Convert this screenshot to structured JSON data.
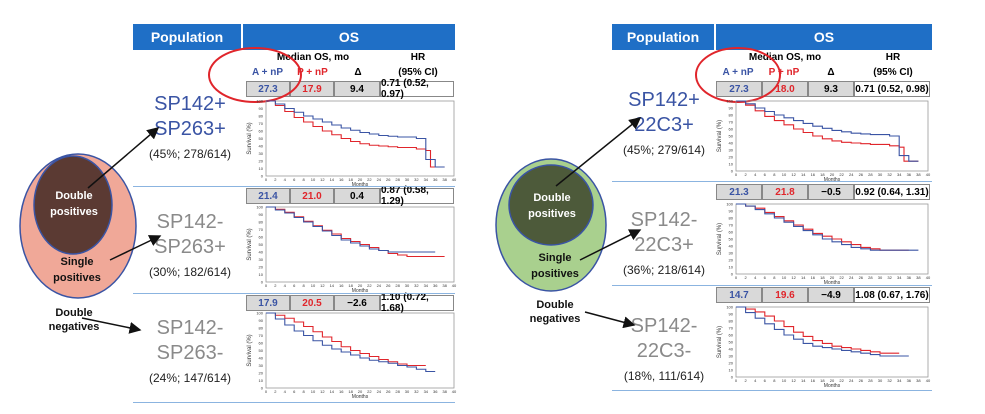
{
  "panels": [
    {
      "header": {
        "population": "Population",
        "os": "OS"
      },
      "col_headers": {
        "median": "Median OS, mo",
        "arm_a": "A + nP",
        "arm_p": "P + nP",
        "delta": "Δ",
        "hr": "HR",
        "hr_sub": "(95% CI)"
      },
      "venn": {
        "double": "Double positives",
        "single": "Single positives",
        "neg": "Double negatives"
      },
      "rows": [
        {
          "name1": "SP142+",
          "name2": "SP263+",
          "sub": "(45%; 278/614)",
          "color": "#3a54a4",
          "a": "27.3",
          "p": "17.9",
          "delta": "9.4",
          "hr": "0.71 (0.52, 0.97)"
        },
        {
          "name1": "SP142-",
          "name2": "SP263+",
          "sub": "(30%; 182/614)",
          "color": "#8a8a8a",
          "a": "21.4",
          "p": "21.0",
          "delta": "0.4",
          "hr": "0.87 (0.58, 1.29)"
        },
        {
          "name1": "SP142-",
          "name2": "SP263-",
          "sub": "(24%; 147/614)",
          "color": "#8a8a8a",
          "a": "17.9",
          "p": "20.5",
          "delta": "−2.6",
          "hr": "1.10 (0.72, 1.68)"
        }
      ]
    },
    {
      "header": {
        "population": "Population",
        "os": "OS"
      },
      "col_headers": {
        "median": "Median OS, mo",
        "arm_a": "A + nP",
        "arm_p": "P + nP",
        "delta": "Δ",
        "hr": "HR",
        "hr_sub": "(95% CI)"
      },
      "venn": {
        "double": "Double positives",
        "single": "Single positives",
        "neg": "Double negatives"
      },
      "rows": [
        {
          "name1": "SP142+",
          "name2": "22C3+",
          "sub": "(45%; 279/614)",
          "color": "#3a54a4",
          "a": "27.3",
          "p": "18.0",
          "delta": "9.3",
          "hr": "0.71 (0.52, 0.98)"
        },
        {
          "name1": "SP142-",
          "name2": "22C3+",
          "sub": "(36%; 218/614)",
          "color": "#8a8a8a",
          "a": "21.3",
          "p": "21.8",
          "delta": "−0.5",
          "hr": "0.92 (0.64, 1.31)"
        },
        {
          "name1": "SP142-",
          "name2": "22C3-",
          "sub": "(18%, 111/614)",
          "color": "#8a8a8a",
          "a": "14.7",
          "p": "19.6",
          "delta": "−4.9",
          "hr": "1.08 (0.67, 1.76)"
        }
      ]
    }
  ],
  "chart_data": {
    "type": "line",
    "xlabel": "Months",
    "ylabel": "Survival (%)",
    "xlim": [
      0,
      40
    ],
    "ylim": [
      0,
      100
    ],
    "xticks": [
      "0",
      "2",
      "4",
      "6",
      "8",
      "10",
      "12",
      "14",
      "16",
      "18",
      "20",
      "22",
      "24",
      "26",
      "28",
      "30",
      "32",
      "34",
      "36",
      "38",
      "40"
    ],
    "yticks": [
      "100",
      "90",
      "80",
      "70",
      "60",
      "50",
      "40",
      "30",
      "20",
      "10",
      "0"
    ],
    "colors": {
      "a_np": "#3a54a4",
      "p_np": "#e0252b"
    },
    "plots": [
      {
        "a_np": [
          [
            0,
            100
          ],
          [
            2,
            96
          ],
          [
            4,
            90
          ],
          [
            6,
            85
          ],
          [
            8,
            80
          ],
          [
            10,
            76
          ],
          [
            12,
            72
          ],
          [
            14,
            68
          ],
          [
            16,
            64
          ],
          [
            18,
            61
          ],
          [
            20,
            58
          ],
          [
            22,
            56
          ],
          [
            24,
            54
          ],
          [
            26,
            53
          ],
          [
            28,
            52
          ],
          [
            30,
            52
          ],
          [
            32,
            50
          ],
          [
            34,
            22
          ],
          [
            36,
            12
          ],
          [
            38,
            12
          ]
        ],
        "p_np": [
          [
            0,
            100
          ],
          [
            2,
            94
          ],
          [
            4,
            86
          ],
          [
            6,
            78
          ],
          [
            8,
            72
          ],
          [
            10,
            66
          ],
          [
            12,
            60
          ],
          [
            14,
            55
          ],
          [
            16,
            50
          ],
          [
            18,
            46
          ],
          [
            20,
            43
          ],
          [
            22,
            41
          ],
          [
            24,
            40
          ],
          [
            26,
            39
          ],
          [
            28,
            38
          ],
          [
            30,
            38
          ],
          [
            32,
            36
          ],
          [
            34,
            34
          ],
          [
            35,
            12
          ],
          [
            38,
            12
          ]
        ]
      },
      {
        "a_np": [
          [
            0,
            100
          ],
          [
            2,
            96
          ],
          [
            4,
            92
          ],
          [
            6,
            86
          ],
          [
            8,
            80
          ],
          [
            10,
            74
          ],
          [
            12,
            68
          ],
          [
            14,
            62
          ],
          [
            16,
            56
          ],
          [
            18,
            52
          ],
          [
            20,
            48
          ],
          [
            22,
            44
          ],
          [
            24,
            42
          ],
          [
            26,
            40
          ],
          [
            28,
            40
          ],
          [
            30,
            40
          ],
          [
            32,
            40
          ],
          [
            34,
            40
          ],
          [
            36,
            40
          ]
        ],
        "p_np": [
          [
            0,
            100
          ],
          [
            2,
            97
          ],
          [
            4,
            93
          ],
          [
            6,
            87
          ],
          [
            8,
            81
          ],
          [
            10,
            75
          ],
          [
            12,
            69
          ],
          [
            14,
            64
          ],
          [
            16,
            58
          ],
          [
            18,
            54
          ],
          [
            20,
            50
          ],
          [
            22,
            46
          ],
          [
            24,
            42
          ],
          [
            26,
            38
          ],
          [
            28,
            36
          ],
          [
            30,
            34
          ],
          [
            32,
            34
          ],
          [
            34,
            34
          ],
          [
            36,
            34
          ],
          [
            38,
            34
          ]
        ]
      },
      {
        "a_np": [
          [
            0,
            100
          ],
          [
            2,
            92
          ],
          [
            4,
            84
          ],
          [
            6,
            76
          ],
          [
            8,
            70
          ],
          [
            10,
            63
          ],
          [
            12,
            57
          ],
          [
            14,
            52
          ],
          [
            16,
            48
          ],
          [
            18,
            44
          ],
          [
            20,
            40
          ],
          [
            22,
            37
          ],
          [
            24,
            35
          ],
          [
            26,
            33
          ],
          [
            28,
            30
          ],
          [
            30,
            28
          ],
          [
            32,
            25
          ],
          [
            34,
            22
          ],
          [
            36,
            22
          ]
        ],
        "p_np": [
          [
            0,
            100
          ],
          [
            2,
            97
          ],
          [
            4,
            93
          ],
          [
            6,
            88
          ],
          [
            8,
            82
          ],
          [
            10,
            75
          ],
          [
            12,
            68
          ],
          [
            14,
            62
          ],
          [
            16,
            55
          ],
          [
            18,
            50
          ],
          [
            20,
            46
          ],
          [
            22,
            42
          ],
          [
            24,
            38
          ],
          [
            26,
            35
          ],
          [
            28,
            32
          ],
          [
            30,
            30
          ],
          [
            32,
            30
          ],
          [
            34,
            30
          ]
        ]
      },
      {
        "a_np": [
          [
            0,
            100
          ],
          [
            2,
            96
          ],
          [
            4,
            90
          ],
          [
            6,
            85
          ],
          [
            8,
            80
          ],
          [
            10,
            76
          ],
          [
            12,
            72
          ],
          [
            14,
            68
          ],
          [
            16,
            64
          ],
          [
            18,
            61
          ],
          [
            20,
            58
          ],
          [
            22,
            56
          ],
          [
            24,
            54
          ],
          [
            26,
            53
          ],
          [
            28,
            52
          ],
          [
            30,
            52
          ],
          [
            32,
            50
          ],
          [
            34,
            22
          ],
          [
            36,
            14
          ],
          [
            38,
            14
          ]
        ],
        "p_np": [
          [
            0,
            100
          ],
          [
            2,
            94
          ],
          [
            4,
            86
          ],
          [
            6,
            78
          ],
          [
            8,
            72
          ],
          [
            10,
            66
          ],
          [
            12,
            60
          ],
          [
            14,
            55
          ],
          [
            16,
            50
          ],
          [
            18,
            46
          ],
          [
            20,
            43
          ],
          [
            22,
            41
          ],
          [
            24,
            40
          ],
          [
            26,
            39
          ],
          [
            28,
            38
          ],
          [
            30,
            38
          ],
          [
            32,
            36
          ],
          [
            34,
            34
          ],
          [
            35,
            14
          ],
          [
            38,
            14
          ]
        ]
      },
      {
        "a_np": [
          [
            0,
            100
          ],
          [
            2,
            97
          ],
          [
            4,
            92
          ],
          [
            6,
            86
          ],
          [
            8,
            80
          ],
          [
            10,
            74
          ],
          [
            12,
            68
          ],
          [
            14,
            62
          ],
          [
            16,
            56
          ],
          [
            18,
            50
          ],
          [
            20,
            46
          ],
          [
            22,
            42
          ],
          [
            24,
            38
          ],
          [
            26,
            36
          ],
          [
            28,
            34
          ],
          [
            30,
            34
          ],
          [
            32,
            34
          ],
          [
            34,
            34
          ],
          [
            36,
            34
          ],
          [
            38,
            34
          ]
        ],
        "p_np": [
          [
            0,
            100
          ],
          [
            2,
            97
          ],
          [
            4,
            94
          ],
          [
            6,
            88
          ],
          [
            8,
            82
          ],
          [
            10,
            76
          ],
          [
            12,
            70
          ],
          [
            14,
            64
          ],
          [
            16,
            58
          ],
          [
            18,
            54
          ],
          [
            20,
            50
          ],
          [
            22,
            46
          ],
          [
            24,
            42
          ],
          [
            26,
            38
          ],
          [
            28,
            36
          ],
          [
            30,
            34
          ],
          [
            32,
            34
          ],
          [
            34,
            34
          ],
          [
            36,
            34
          ]
        ]
      },
      {
        "a_np": [
          [
            0,
            100
          ],
          [
            2,
            92
          ],
          [
            4,
            84
          ],
          [
            6,
            76
          ],
          [
            8,
            68
          ],
          [
            10,
            60
          ],
          [
            12,
            54
          ],
          [
            14,
            48
          ],
          [
            16,
            44
          ],
          [
            18,
            42
          ],
          [
            20,
            40
          ],
          [
            22,
            38
          ],
          [
            24,
            36
          ],
          [
            26,
            34
          ],
          [
            28,
            32
          ],
          [
            30,
            30
          ],
          [
            32,
            30
          ],
          [
            34,
            30
          ],
          [
            36,
            30
          ]
        ],
        "p_np": [
          [
            0,
            100
          ],
          [
            2,
            97
          ],
          [
            4,
            93
          ],
          [
            6,
            87
          ],
          [
            8,
            80
          ],
          [
            10,
            72
          ],
          [
            12,
            64
          ],
          [
            14,
            58
          ],
          [
            16,
            52
          ],
          [
            18,
            48
          ],
          [
            20,
            44
          ],
          [
            22,
            42
          ],
          [
            24,
            40
          ],
          [
            26,
            38
          ],
          [
            28,
            36
          ],
          [
            30,
            34
          ],
          [
            32,
            34
          ],
          [
            34,
            34
          ]
        ]
      }
    ]
  }
}
